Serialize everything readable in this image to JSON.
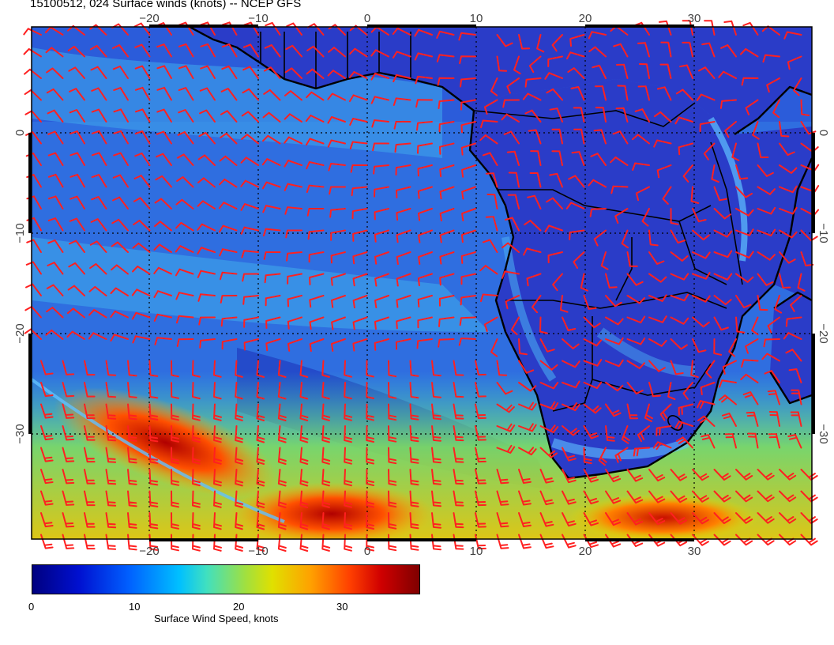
{
  "title": "15100512, 024 Surface winds (knots) -- NCEP GFS",
  "map": {
    "lon_ticks": [
      "−20",
      "−10",
      "0",
      "10",
      "20",
      "30"
    ],
    "lat_ticks": [
      "0",
      "−10",
      "−20",
      "−30"
    ],
    "land_color": "#2a3cc8",
    "barb_color": "#ff2020",
    "outline_color": "#000000"
  },
  "colorbar": {
    "ticks": [
      "0",
      "10",
      "20",
      "30"
    ],
    "label": "Surface Wind Speed, knots"
  }
}
